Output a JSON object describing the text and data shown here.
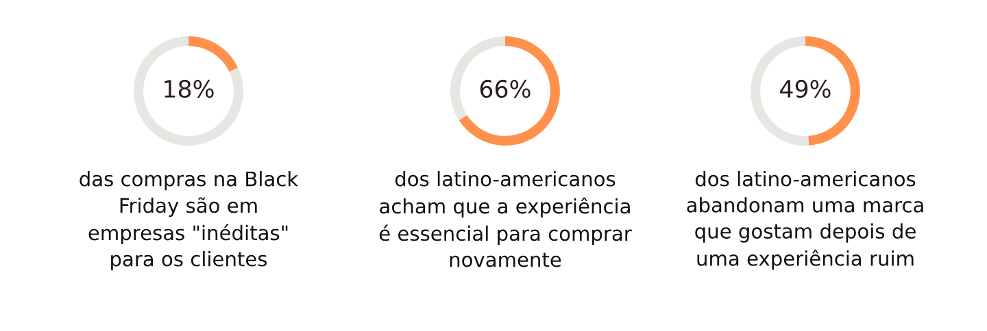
{
  "chart_data": [
    {
      "type": "donut",
      "categories": [
        null,
        null
      ],
      "values": [
        18,
        82
      ],
      "colors": [
        "#ff914d",
        "#e6e6e2"
      ],
      "value_labels": [
        "18%",
        null
      ],
      "annotations": [
        "das compras na Black\nFriday são em\nempresas \"inéditas\"\npara os clientes"
      ]
    },
    {
      "type": "donut",
      "categories": [
        null,
        null
      ],
      "values": [
        66,
        34
      ],
      "colors": [
        "#ff914d",
        "#e6e6e2"
      ],
      "value_labels": [
        "66%",
        null
      ],
      "annotations": [
        "dos latino-americanos\nacham que a experiência\né essencial para comprar\nnovamente"
      ]
    },
    {
      "type": "donut",
      "categories": [
        null,
        null
      ],
      "values": [
        49,
        51
      ],
      "colors": [
        "#ff914d",
        "#e6e6e2"
      ],
      "value_labels": [
        "49%",
        null
      ],
      "annotations": [
        "dos latino-americanos\nabandonam uma marca\nque gostam depois de\numa experiência ruim"
      ]
    }
  ]
}
